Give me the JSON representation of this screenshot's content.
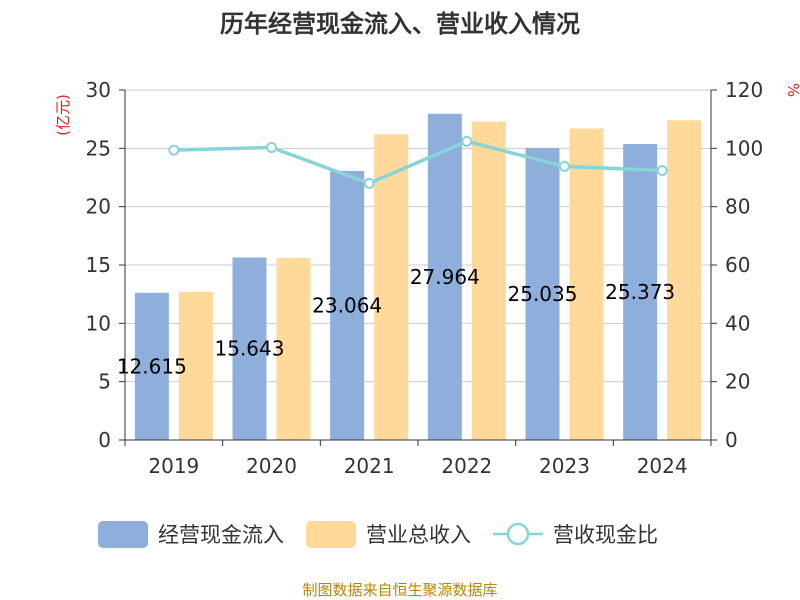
{
  "chart_data": {
    "type": "bar",
    "title": "历年经营现金流入、营业收入情况",
    "categories": [
      "2019",
      "2020",
      "2021",
      "2022",
      "2023",
      "2024"
    ],
    "left_axis": {
      "unit": "(亿元)",
      "ylim": [
        0,
        30
      ],
      "ticks": [
        0,
        5,
        10,
        15,
        20,
        25,
        30
      ]
    },
    "right_axis": {
      "unit": "%",
      "ylim": [
        0,
        120
      ],
      "ticks": [
        0,
        20,
        40,
        60,
        80,
        100,
        120
      ]
    },
    "series": [
      {
        "name": "经营现金流入",
        "kind": "bar",
        "axis": "left",
        "color": "#8eaedb",
        "values": [
          12.615,
          15.643,
          23.064,
          27.964,
          25.035,
          25.373
        ],
        "labels": [
          "12.615",
          "15.643",
          "23.064",
          "27.964",
          "25.035",
          "25.373"
        ]
      },
      {
        "name": "营业总收入",
        "kind": "bar",
        "axis": "left",
        "color": "#fed999",
        "values": [
          12.7,
          15.6,
          26.2,
          27.3,
          26.7,
          27.4
        ]
      },
      {
        "name": "营收现金比",
        "kind": "line",
        "axis": "right",
        "color": "#88d4d8",
        "values": [
          99.4,
          100.3,
          88.0,
          102.4,
          93.8,
          92.4
        ]
      }
    ],
    "grid": true,
    "legend_position": "bottom"
  },
  "source": "制图数据来自恒生聚源数据库"
}
